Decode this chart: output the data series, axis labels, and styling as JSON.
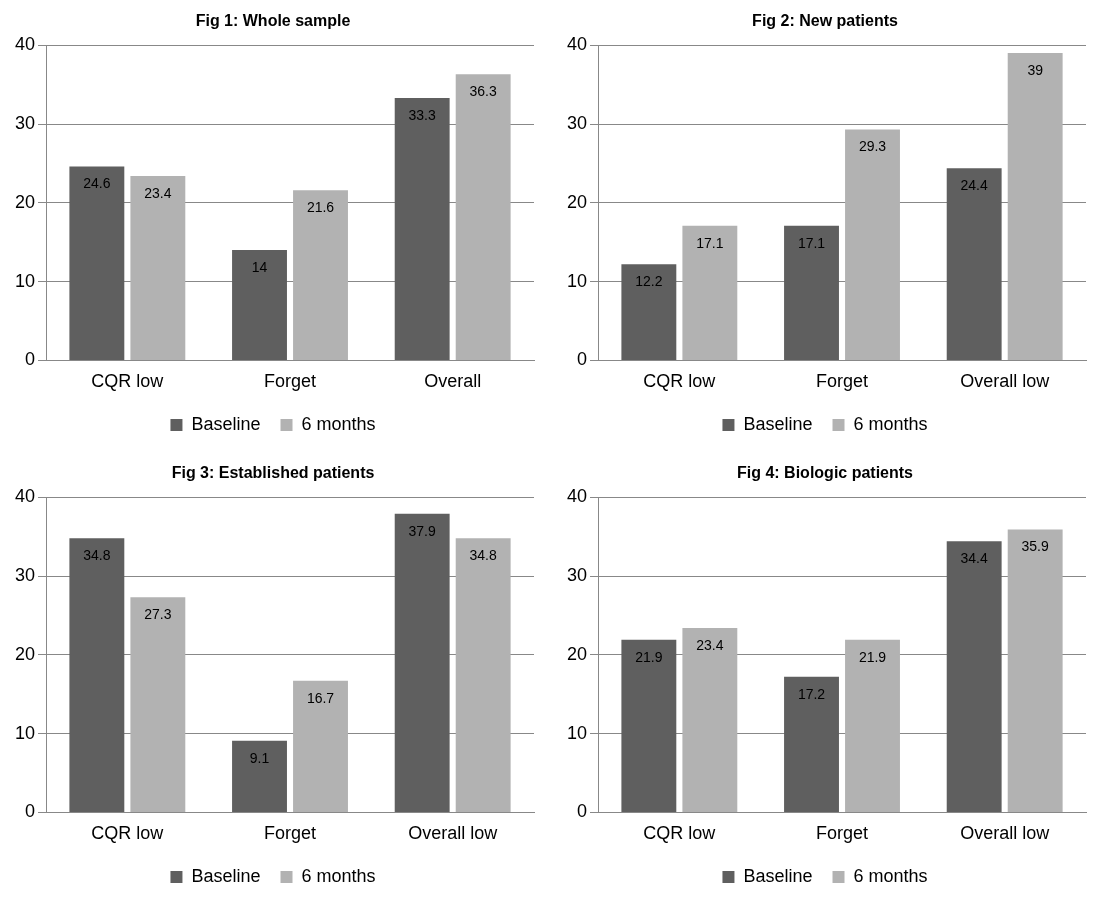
{
  "chart_data": [
    {
      "type": "bar",
      "title": "Fig 1: Whole sample",
      "categories": [
        "CQR low",
        "Forget",
        "Overall"
      ],
      "series": [
        {
          "name": "Baseline",
          "color": "#5f5f5f",
          "values": [
            24.6,
            14,
            33.3
          ]
        },
        {
          "name": "6 months",
          "color": "#b2b2b2",
          "values": [
            23.4,
            21.6,
            36.3
          ]
        }
      ],
      "ylim": [
        0,
        40
      ],
      "yticks": [
        0,
        10,
        20,
        30,
        40
      ],
      "grid": "y",
      "legend": "bottom",
      "data_labels": true
    },
    {
      "type": "bar",
      "title": "Fig 2: New patients",
      "categories": [
        "CQR low",
        "Forget",
        "Overall low"
      ],
      "series": [
        {
          "name": "Baseline",
          "color": "#5f5f5f",
          "values": [
            12.2,
            17.1,
            24.4
          ]
        },
        {
          "name": "6 months",
          "color": "#b2b2b2",
          "values": [
            17.1,
            29.3,
            39
          ]
        }
      ],
      "ylim": [
        0,
        40
      ],
      "yticks": [
        0,
        10,
        20,
        30,
        40
      ],
      "grid": "y",
      "legend": "bottom",
      "data_labels": true
    },
    {
      "type": "bar",
      "title": "Fig 3: Established patients",
      "categories": [
        "CQR low",
        "Forget",
        "Overall low"
      ],
      "series": [
        {
          "name": "Baseline",
          "color": "#5f5f5f",
          "values": [
            34.8,
            9.1,
            37.9
          ]
        },
        {
          "name": "6 months",
          "color": "#b2b2b2",
          "values": [
            27.3,
            16.7,
            34.8
          ]
        }
      ],
      "ylim": [
        0,
        40
      ],
      "yticks": [
        0,
        10,
        20,
        30,
        40
      ],
      "grid": "y",
      "legend": "bottom",
      "data_labels": true
    },
    {
      "type": "bar",
      "title": "Fig 4: Biologic patients",
      "categories": [
        "CQR low",
        "Forget",
        "Overall low"
      ],
      "series": [
        {
          "name": "Baseline",
          "color": "#5f5f5f",
          "values": [
            21.9,
            17.2,
            34.4
          ]
        },
        {
          "name": "6 months",
          "color": "#b2b2b2",
          "values": [
            23.4,
            21.9,
            35.9
          ]
        }
      ],
      "ylim": [
        0,
        40
      ],
      "yticks": [
        0,
        10,
        20,
        30,
        40
      ],
      "grid": "y",
      "legend": "bottom",
      "data_labels": true
    }
  ]
}
